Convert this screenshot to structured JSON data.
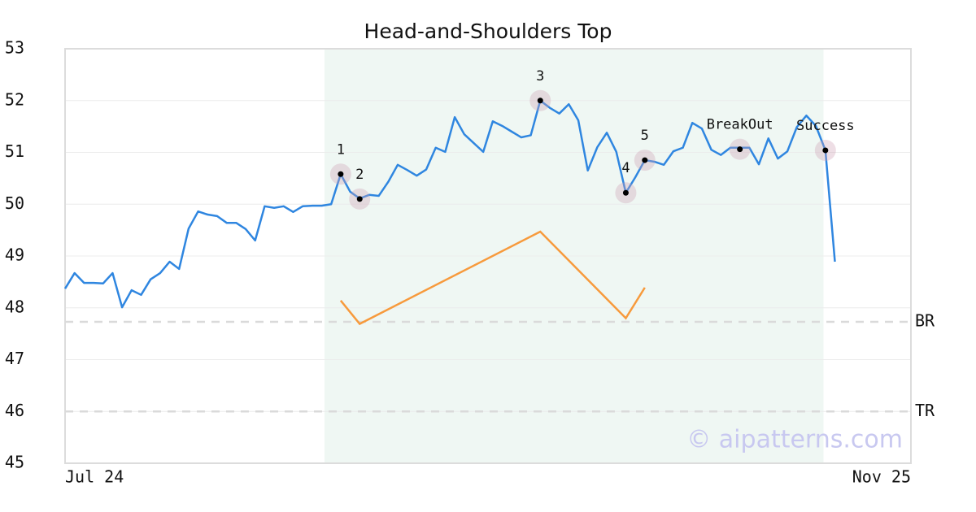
{
  "chart_data": {
    "type": "line",
    "title": "Head-and-Shoulders Top",
    "categories": [
      "Jul 24",
      null,
      null,
      null,
      null,
      null,
      null,
      null,
      null,
      null,
      null,
      null,
      null,
      null,
      null,
      null,
      null,
      null,
      null,
      null,
      null,
      null,
      null,
      null,
      null,
      null,
      null,
      null,
      null,
      null,
      null,
      null,
      null,
      null,
      null,
      null,
      null,
      null,
      null,
      null,
      null,
      null,
      null,
      null,
      null,
      null,
      null,
      null,
      null,
      null,
      null,
      null,
      null,
      null,
      null,
      null,
      null,
      null,
      null,
      null,
      null,
      null,
      null,
      null,
      null,
      null,
      null,
      null,
      null,
      null,
      null,
      null,
      null,
      null,
      null,
      null,
      null,
      null,
      null,
      null,
      null,
      null,
      null,
      null,
      null,
      null,
      null,
      null,
      null,
      "Nov 25"
    ],
    "series": [
      {
        "color": "#2f86e0",
        "values": [
          48.37,
          48.67,
          48.48,
          48.48,
          48.47,
          48.67,
          48.01,
          48.34,
          48.25,
          48.55,
          48.67,
          48.89,
          48.75,
          49.53,
          49.86,
          49.8,
          49.77,
          49.64,
          49.64,
          49.52,
          49.3,
          49.96,
          49.93,
          49.96,
          49.85,
          49.96,
          49.97,
          49.97,
          50.0,
          50.58,
          50.24,
          50.11,
          50.18,
          50.16,
          50.43,
          50.76,
          50.66,
          50.55,
          50.67,
          51.09,
          51.01,
          51.68,
          51.35,
          51.18,
          51.01,
          51.6,
          51.51,
          51.4,
          51.29,
          51.33,
          52.0,
          51.86,
          51.75,
          51.93,
          51.62,
          50.65,
          51.1,
          51.38,
          51.01,
          50.22,
          50.52,
          50.85,
          50.82,
          50.76,
          51.02,
          51.09,
          51.57,
          51.46,
          51.05,
          50.95,
          51.09,
          51.09,
          51.09,
          50.77,
          51.27,
          50.88,
          51.02,
          51.49,
          51.71,
          51.51,
          51.04,
          48.89,
          null,
          null,
          null,
          null,
          null,
          null,
          null,
          null
        ]
      }
    ],
    "indicator": {
      "color": "#f79a3c",
      "x": [
        29,
        31,
        50,
        59,
        61
      ],
      "values": [
        48.14,
        47.69,
        49.47,
        47.8,
        48.39
      ]
    },
    "points": [
      {
        "label": "1",
        "x": 29,
        "value": 50.58
      },
      {
        "label": "2",
        "x": 31,
        "value": 50.1
      },
      {
        "label": "3",
        "x": 50,
        "value": 52.0
      },
      {
        "label": "4",
        "x": 59,
        "value": 50.22
      },
      {
        "label": "5",
        "x": 61,
        "value": 50.85
      },
      {
        "label": "BreakOut",
        "x": 71,
        "value": 51.06
      },
      {
        "label": "Success",
        "x": 80,
        "value": 51.04
      }
    ],
    "levels": [
      {
        "label": "BR",
        "value": 47.73
      },
      {
        "label": "TR",
        "value": 46
      }
    ],
    "highlight": [
      27.3,
      79.8
    ],
    "highlight_color": "#eff7f3",
    "ylim": [
      45,
      53
    ],
    "yticks": [
      45,
      46,
      47,
      48,
      49,
      50,
      51,
      52,
      53
    ],
    "grid": true,
    "watermark": "© aipatterns.com"
  }
}
